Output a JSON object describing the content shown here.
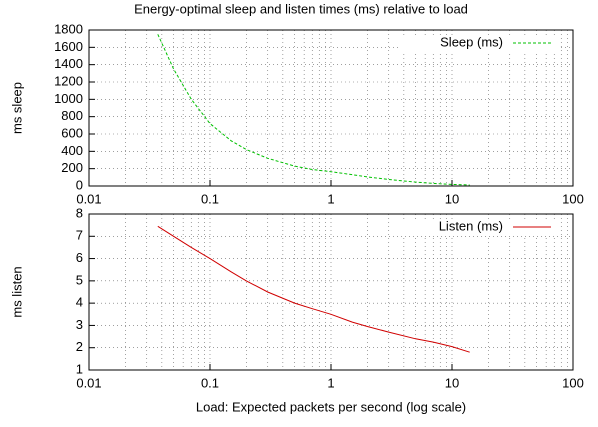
{
  "chart_data": [
    {
      "type": "line",
      "title": "Energy-optimal sleep and listen times (ms) relative to load",
      "ylabel": "ms sleep",
      "xscale": "log",
      "xlim": [
        0.01,
        100
      ],
      "xticks": [
        0.01,
        0.1,
        1,
        10,
        100
      ],
      "ylim": [
        0,
        1800
      ],
      "yticks": [
        0,
        200,
        400,
        600,
        800,
        1000,
        1200,
        1400,
        1600,
        1800
      ],
      "grid": true,
      "legend": "upper right",
      "x": [
        0.037,
        0.05,
        0.07,
        0.1,
        0.15,
        0.2,
        0.3,
        0.5,
        0.7,
        1,
        1.5,
        2,
        3,
        5,
        7,
        10,
        14
      ],
      "series": [
        {
          "name": "Sleep (ms)",
          "color": "#00c000",
          "style": "dashed",
          "values": [
            1750,
            1350,
            1000,
            720,
            520,
            420,
            320,
            230,
            190,
            165,
            130,
            105,
            75,
            45,
            30,
            18,
            12
          ]
        }
      ]
    },
    {
      "type": "line",
      "ylabel": "ms listen",
      "xlabel": "Load:  Expected packets per second (log scale)",
      "xscale": "log",
      "xlim": [
        0.01,
        100
      ],
      "xticks": [
        0.01,
        0.1,
        1,
        10,
        100
      ],
      "ylim": [
        1,
        8
      ],
      "yticks": [
        1,
        2,
        3,
        4,
        5,
        6,
        7,
        8
      ],
      "grid": true,
      "legend": "upper right",
      "x": [
        0.037,
        0.05,
        0.07,
        0.1,
        0.15,
        0.2,
        0.3,
        0.5,
        0.7,
        1,
        1.5,
        2,
        3,
        5,
        7,
        10,
        14
      ],
      "series": [
        {
          "name": "Listen (ms)",
          "color": "#d00000",
          "style": "solid",
          "values": [
            7.45,
            7.0,
            6.5,
            6.0,
            5.4,
            5.0,
            4.5,
            4.0,
            3.75,
            3.5,
            3.15,
            2.95,
            2.7,
            2.4,
            2.25,
            2.05,
            1.8
          ]
        }
      ]
    }
  ]
}
